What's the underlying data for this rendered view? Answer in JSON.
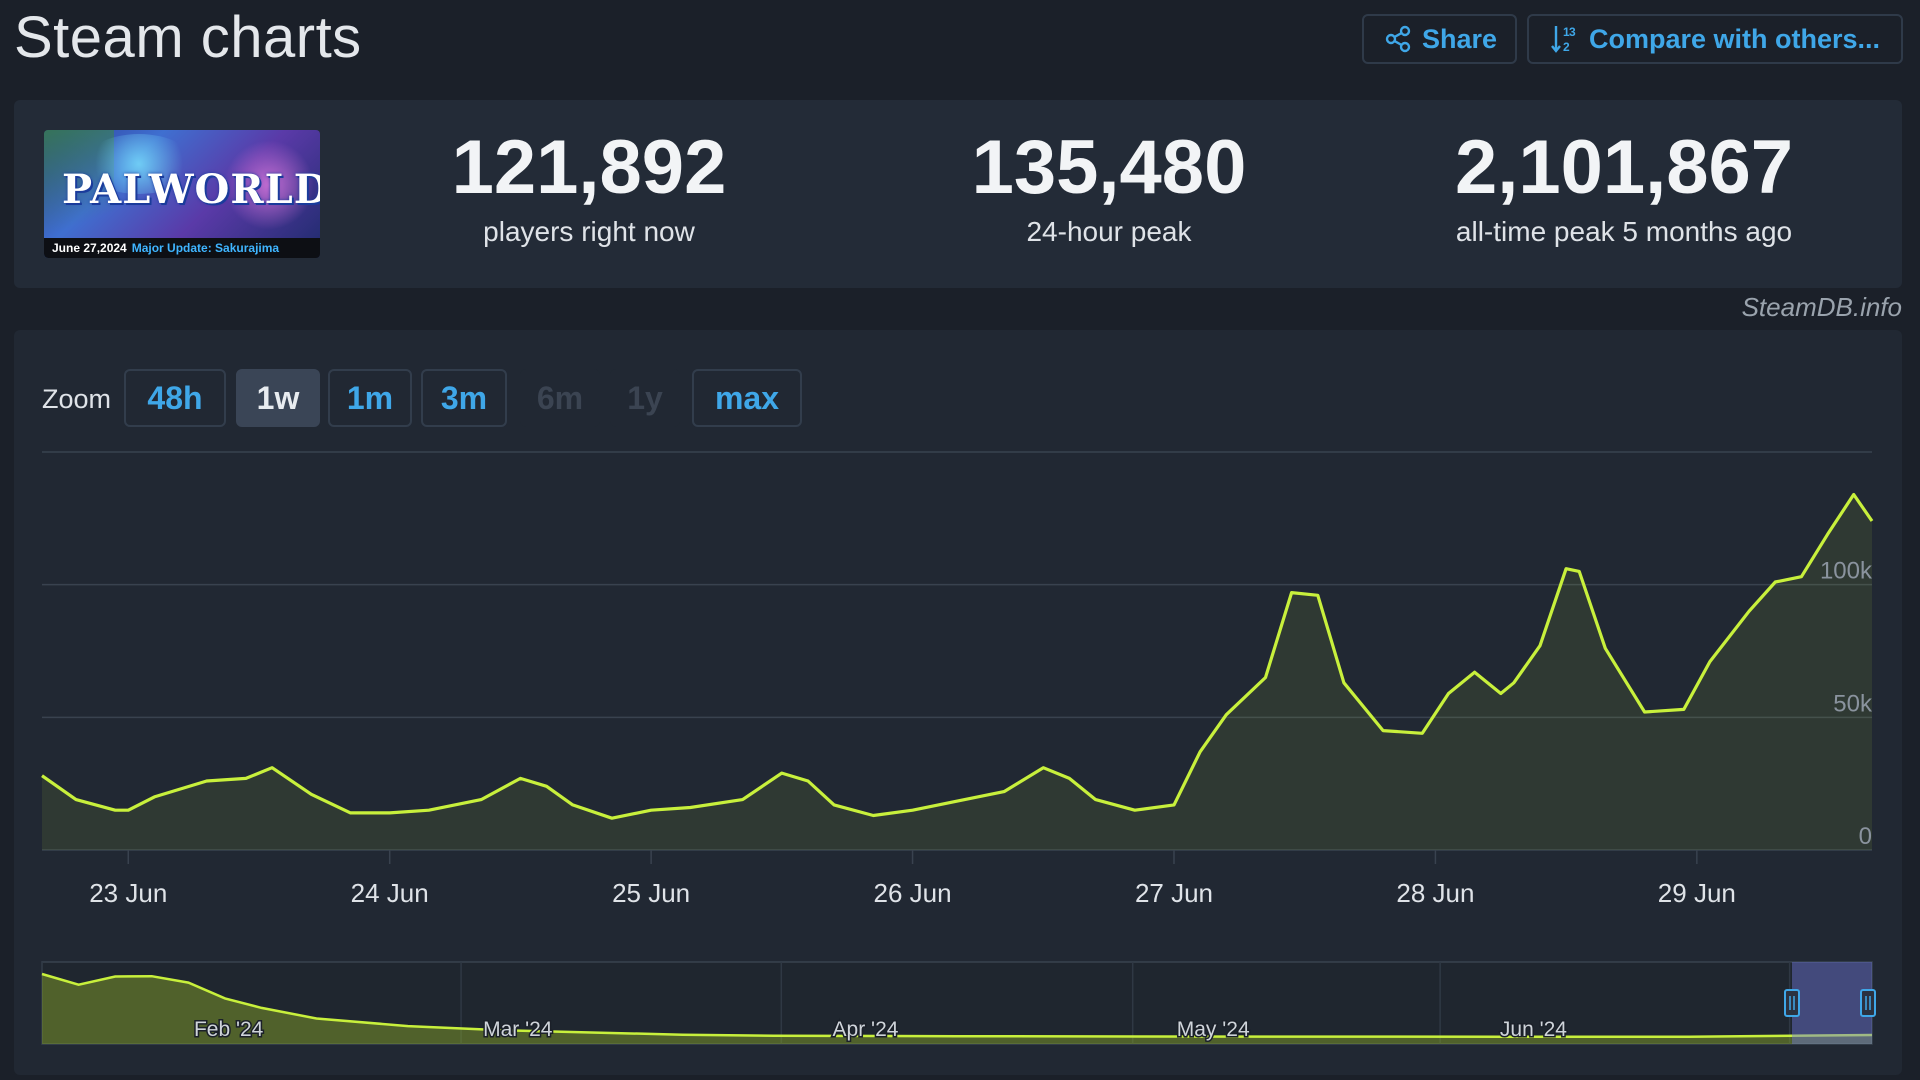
{
  "page": {
    "title": "Steam charts"
  },
  "toolbar": {
    "share_label": "Share",
    "compare_label": "Compare with others..."
  },
  "game": {
    "banner_logo": "PALWORLD",
    "banner_date": "June 27,2024",
    "banner_update": "Major Update: Sakurajima"
  },
  "stats": [
    {
      "value": "121,892",
      "label": "players right now"
    },
    {
      "value": "135,480",
      "label": "24-hour peak"
    },
    {
      "value": "2,101,867",
      "label": "all-time peak 5 months ago"
    }
  ],
  "source_label": "SteamDB.info",
  "zoom": {
    "label": "Zoom",
    "buttons": [
      {
        "label": "48h",
        "state": "enabled"
      },
      {
        "label": "1w",
        "state": "active"
      },
      {
        "label": "1m",
        "state": "enabled"
      },
      {
        "label": "3m",
        "state": "enabled"
      },
      {
        "label": "6m",
        "state": "disabled"
      },
      {
        "label": "1y",
        "state": "disabled"
      },
      {
        "label": "max",
        "state": "enabled"
      }
    ]
  },
  "colors": {
    "line": "#c8f03c",
    "fill": "rgba(180,220,60,0.10)",
    "grid": "#39424f",
    "accent": "#3fa7e8"
  },
  "chart_data": [
    {
      "type": "area",
      "title": "",
      "xlabel": "",
      "ylabel": "",
      "x_unit": "days since 22 Jun (0:00)",
      "x_range": [
        0.67,
        7.67
      ],
      "ylim": [
        0,
        150000
      ],
      "y_ticks": [
        0,
        50000,
        100000
      ],
      "y_tick_labels": [
        "0",
        "50k",
        "100k"
      ],
      "x_ticks": [
        1,
        2,
        3,
        4,
        5,
        6,
        7
      ],
      "x_tick_labels": [
        "23 Jun",
        "24 Jun",
        "25 Jun",
        "26 Jun",
        "27 Jun",
        "28 Jun",
        "29 Jun"
      ],
      "grid": true,
      "series": [
        {
          "name": "Players",
          "x": [
            0.67,
            0.8,
            0.95,
            1.0,
            1.1,
            1.3,
            1.45,
            1.55,
            1.7,
            1.85,
            2.0,
            2.15,
            2.35,
            2.5,
            2.6,
            2.7,
            2.85,
            3.0,
            3.15,
            3.35,
            3.5,
            3.6,
            3.7,
            3.85,
            4.0,
            4.15,
            4.35,
            4.5,
            4.6,
            4.7,
            4.85,
            5.0,
            5.1,
            5.2,
            5.35,
            5.45,
            5.55,
            5.65,
            5.8,
            5.95,
            6.05,
            6.15,
            6.25,
            6.3,
            6.4,
            6.5,
            6.55,
            6.65,
            6.8,
            6.95,
            7.05,
            7.2,
            7.3,
            7.4,
            7.5,
            7.6,
            7.67
          ],
          "y": [
            28000,
            19000,
            15000,
            15000,
            20000,
            26000,
            27000,
            31000,
            21000,
            14000,
            14000,
            15000,
            19000,
            27000,
            24000,
            17000,
            12000,
            15000,
            16000,
            19000,
            29000,
            26000,
            17000,
            13000,
            15000,
            18000,
            22000,
            31000,
            27000,
            19000,
            15000,
            17000,
            37000,
            51000,
            65000,
            97000,
            96000,
            63000,
            45000,
            44000,
            59000,
            67000,
            59000,
            63000,
            77000,
            106000,
            105000,
            76000,
            52000,
            53000,
            71000,
            90000,
            101000,
            103000,
            119000,
            134000,
            124000
          ]
        }
      ]
    },
    {
      "type": "area",
      "title": "",
      "xlabel": "",
      "ylabel": "",
      "x_tick_labels": [
        "Feb '24",
        "Mar '24",
        "Apr '24",
        "May '24",
        "Jun '24"
      ],
      "x": [
        0,
        0.02,
        0.04,
        0.06,
        0.08,
        0.1,
        0.12,
        0.15,
        0.2,
        0.25,
        0.3,
        0.35,
        0.4,
        0.5,
        0.6,
        0.7,
        0.8,
        0.9,
        1.0
      ],
      "values": [
        2101867,
        1750000,
        2020000,
        2030000,
        1820000,
        1300000,
        990000,
        640000,
        390000,
        260000,
        180000,
        110000,
        75000,
        60000,
        50000,
        45000,
        42000,
        40000,
        100000
      ],
      "selected_range_label": "1w"
    }
  ]
}
